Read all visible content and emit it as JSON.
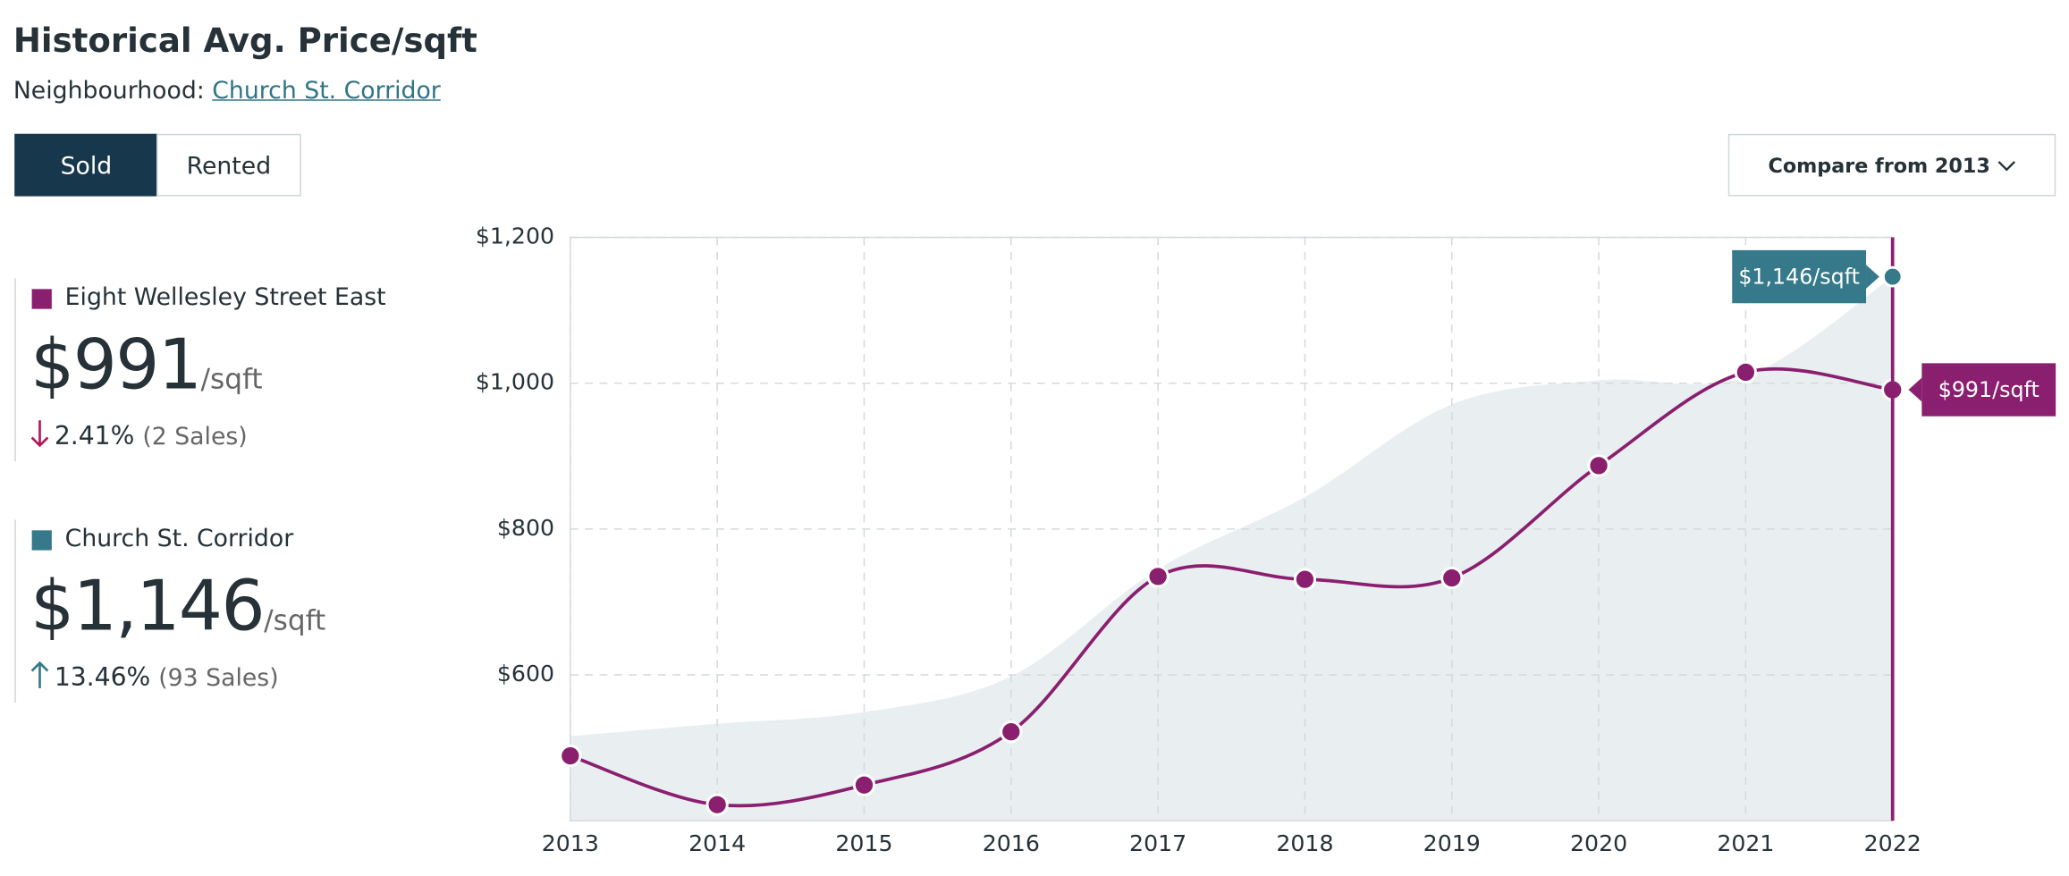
{
  "header": {
    "title": "Historical Avg. Price/sqft",
    "neighbourhood_label": "Neighbourhood:",
    "neighbourhood_link": "Church St. Corridor"
  },
  "tabs": [
    "Sold",
    "Rented"
  ],
  "compare_button": "Compare from 2013",
  "summary": [
    {
      "price": "$991",
      "unit": "/sqft",
      "change": "2.41%",
      "sales": "(2 Sales)"
    },
    {
      "price": "$1,146",
      "unit": "/sqft",
      "change": "13.46%",
      "sales": "(93 Sales)"
    }
  ],
  "chart_data": {
    "type": "line",
    "x": [
      2013,
      2014,
      2015,
      2016,
      2017,
      2018,
      2019,
      2020,
      2021,
      2022
    ],
    "xlim": [
      2013,
      2022
    ],
    "xticks": [
      2013,
      2014,
      2015,
      2016,
      2017,
      2018,
      2019,
      2020,
      2021,
      2022
    ],
    "ylim": [
      400,
      1200
    ],
    "yticks": [
      {
        "value": 600,
        "label": "$600"
      },
      {
        "value": 800,
        "label": "$800"
      },
      {
        "value": 1000,
        "label": "$1,000"
      },
      {
        "value": 1200,
        "label": "$1,200"
      }
    ],
    "grid": true,
    "series": [
      {
        "name": "Eight Wellesley Street East",
        "color": "#8b1f6f",
        "style": "line",
        "values": [
          489,
          422,
          449,
          522,
          735,
          731,
          733,
          887,
          1015,
          991
        ],
        "value_labels": [
          null,
          null,
          null,
          null,
          null,
          null,
          null,
          null,
          null,
          "$991/sqft"
        ]
      },
      {
        "name": "Church St. Corridor",
        "color": "#35798a",
        "fill": "#e9eff1",
        "style": "area",
        "values": [
          516,
          533,
          549,
          598,
          745,
          844,
          971,
          1004,
          1009,
          1146
        ],
        "value_labels": [
          null,
          null,
          null,
          null,
          null,
          null,
          null,
          null,
          null,
          "$1,146/sqft"
        ]
      }
    ]
  }
}
